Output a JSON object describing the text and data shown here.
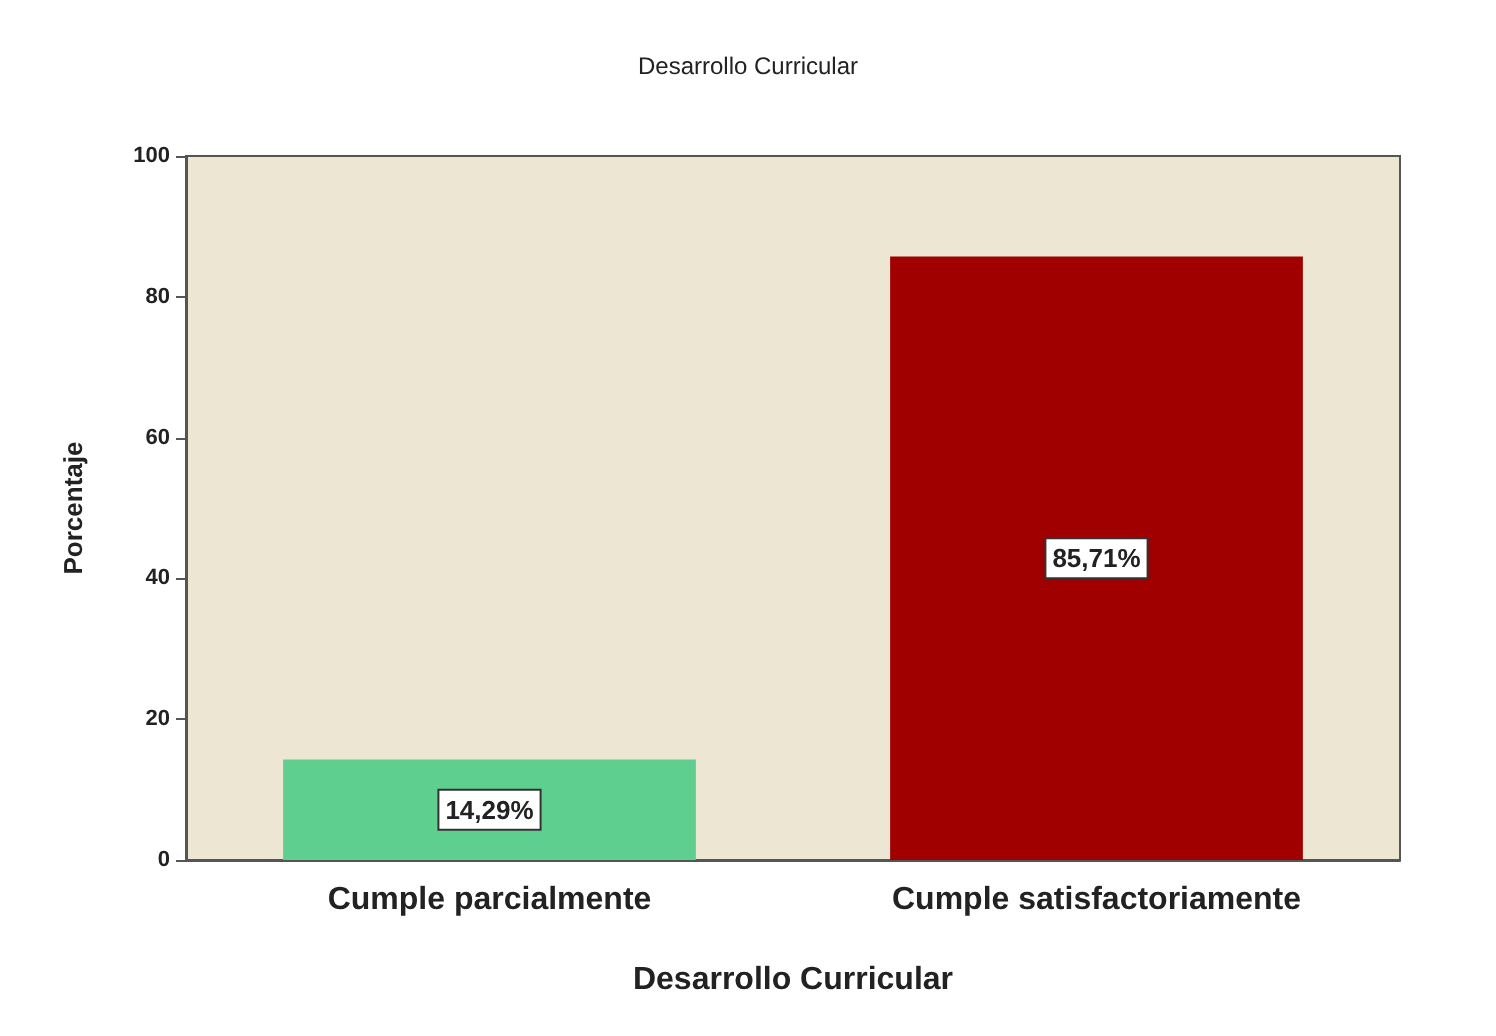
{
  "chart_data": {
    "type": "bar",
    "title": "Desarrollo Curricular",
    "xlabel": "Desarrollo Curricular",
    "ylabel": "Porcentaje",
    "categories": [
      "Cumple parcialmente",
      "Cumple satisfactoriamente"
    ],
    "values": [
      14.29,
      85.71
    ],
    "colors": [
      "#5ecf8f",
      "#a00000"
    ],
    "value_labels": [
      "14,29%",
      "85,71%"
    ],
    "ylim": [
      0,
      100
    ],
    "yticks": [
      0,
      20,
      40,
      60,
      80,
      100
    ],
    "grid": false
  }
}
